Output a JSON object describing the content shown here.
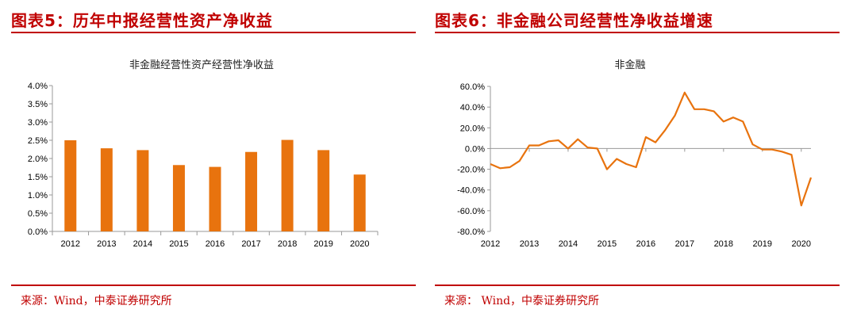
{
  "left": {
    "figure_title": "图表5：历年中报经营性资产净收益",
    "source": "来源：Wind，中泰证券研究所"
  },
  "right": {
    "figure_title": "图表6：非金融公司经营性净收益增速",
    "source": "来源：  Wind，中泰证券研究所"
  },
  "colors": {
    "accent": "#c00000",
    "series": "#e8730e"
  },
  "chart_data": [
    {
      "type": "bar",
      "title": "非金融经营性资产经营性净收益",
      "categories": [
        "2012",
        "2013",
        "2014",
        "2015",
        "2016",
        "2017",
        "2018",
        "2019",
        "2020"
      ],
      "values": [
        2.5,
        2.28,
        2.23,
        1.82,
        1.77,
        2.18,
        2.51,
        2.23,
        1.56
      ],
      "value_unit": "%",
      "ylim": [
        0,
        4.0
      ],
      "yticks": [
        "0.0%",
        "0.5%",
        "1.0%",
        "1.5%",
        "2.0%",
        "2.5%",
        "3.0%",
        "3.5%",
        "4.0%"
      ],
      "grid": false,
      "legend": "none"
    },
    {
      "type": "line",
      "title": "非金融",
      "x_tick_labels": [
        "2012",
        "2013",
        "2014",
        "2015",
        "2016",
        "2017",
        "2018",
        "2019",
        "2020"
      ],
      "series": [
        {
          "x": [
            2012.0,
            2012.25,
            2012.5,
            2012.75,
            2013.0,
            2013.25,
            2013.5,
            2013.75,
            2014.0,
            2014.25,
            2014.5,
            2014.75,
            2015.0,
            2015.25,
            2015.5,
            2015.75,
            2016.0,
            2016.25,
            2016.5,
            2016.75,
            2017.0,
            2017.25,
            2017.5,
            2017.75,
            2018.0,
            2018.25,
            2018.5,
            2018.75,
            2019.0,
            2019.25,
            2019.5,
            2019.75,
            2020.0,
            2020.25
          ],
          "y": [
            -15,
            -19,
            -18,
            -12,
            3,
            3,
            7,
            8,
            0,
            9,
            1,
            0,
            -20,
            -10,
            -15,
            -18,
            11,
            6,
            18,
            32,
            54,
            38,
            38,
            36,
            26,
            30,
            26,
            4,
            -1,
            -1,
            -3,
            -6,
            -55,
            -28
          ]
        }
      ],
      "value_unit": "%",
      "ylim": [
        -80,
        60
      ],
      "yticks": [
        "-80.0%",
        "-60.0%",
        "-40.0%",
        "-20.0%",
        "0.0%",
        "20.0%",
        "40.0%",
        "60.0%"
      ],
      "grid": false,
      "legend": "none"
    }
  ]
}
